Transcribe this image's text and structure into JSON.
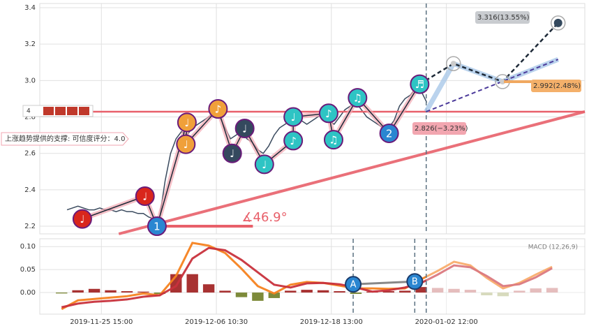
{
  "chart_data": [
    {
      "type": "line",
      "x": [
        5,
        6,
        7,
        8,
        9,
        10,
        11,
        12,
        13,
        14,
        15,
        16,
        17,
        18,
        19,
        20,
        21,
        22,
        23,
        24,
        25,
        26,
        27,
        28,
        29,
        30,
        31,
        32,
        33,
        34,
        35,
        36,
        37,
        38,
        39,
        40,
        41,
        42,
        43,
        44,
        45,
        46,
        47,
        48,
        49,
        50,
        51,
        52,
        53,
        54,
        55,
        56,
        57,
        58,
        59,
        60,
        61,
        62,
        63,
        64,
        65,
        66,
        67,
        68,
        69,
        70,
        71
      ],
      "values": [
        2.29,
        2.3,
        2.31,
        2.3,
        2.29,
        2.29,
        2.3,
        2.29,
        2.29,
        2.28,
        2.29,
        2.28,
        2.28,
        2.27,
        2.27,
        2.25,
        2.24,
        2.25,
        2.45,
        2.6,
        2.68,
        2.72,
        2.7,
        2.74,
        2.76,
        2.78,
        2.8,
        2.82,
        2.8,
        2.74,
        2.68,
        2.7,
        2.72,
        2.68,
        2.66,
        2.62,
        2.6,
        2.64,
        2.7,
        2.74,
        2.76,
        2.78,
        2.76,
        2.78,
        2.76,
        2.78,
        2.8,
        2.82,
        2.78,
        2.76,
        2.8,
        2.84,
        2.86,
        2.88,
        2.84,
        2.8,
        2.78,
        2.76,
        2.74,
        2.74,
        2.78,
        2.86,
        2.9,
        2.92,
        2.96,
        2.94,
        2.88
      ],
      "color": "#3a4a5e",
      "xlim": [
        0,
        100
      ],
      "ylim": [
        2.158,
        3.423
      ],
      "yticks": [
        2.2,
        2.4,
        2.6,
        2.8,
        {
          "value": 3,
          "label": "3.0"
        },
        3.2,
        3.4
      ],
      "xticks": [
        {
          "value": 11.3,
          "label": "2019-11-25 15:00"
        },
        {
          "value": 32.4,
          "label": "2019-12-06 10:30"
        },
        {
          "value": 53.5,
          "label": "2019-12-18 13:00"
        },
        {
          "value": 74.6,
          "label": "2020-01-02 12:00"
        }
      ],
      "grid": true,
      "level": 2.829,
      "support_line": {
        "x": [
          14.5,
          100
        ],
        "y": [
          2.158,
          2.829
        ]
      },
      "angle_line": {
        "x": [
          21.5,
          39.1
        ],
        "y": [
          2.2,
          2.2
        ]
      },
      "angle_label": "∡46.9°",
      "support_note": "上涨趋势提供的支撑: 可信度评分：4.0",
      "level_badge": "4",
      "vline": 70.9,
      "markers": [
        {
          "label": "♩",
          "x": 7.8,
          "y": 2.24,
          "color": "#d9261c"
        },
        {
          "label": "♩",
          "x": 19.3,
          "y": 2.365,
          "color": "#d9261c"
        },
        {
          "label": "1",
          "x": 21.5,
          "y": 2.2,
          "color": "#2a86d1"
        },
        {
          "label": "♩",
          "x": 27.0,
          "y": 2.77,
          "color": "#f0a03a"
        },
        {
          "label": "♩",
          "x": 26.8,
          "y": 2.65,
          "color": "#f0a03a"
        },
        {
          "label": "♪",
          "x": 32.7,
          "y": 2.844,
          "color": "#f0a03a"
        },
        {
          "label": "♩",
          "x": 35.3,
          "y": 2.6,
          "color": "#34495e"
        },
        {
          "label": "♩",
          "x": 37.6,
          "y": 2.737,
          "color": "#34495e"
        },
        {
          "label": "♩",
          "x": 41.2,
          "y": 2.54,
          "color": "#2ec4c4"
        },
        {
          "label": "♪",
          "x": 46.5,
          "y": 2.67,
          "color": "#2ec4c4"
        },
        {
          "label": "♩",
          "x": 46.5,
          "y": 2.8,
          "color": "#2ec4c4"
        },
        {
          "label": "♪",
          "x": 53.0,
          "y": 2.82,
          "color": "#2ec4c4"
        },
        {
          "label": "♫",
          "x": 53.9,
          "y": 2.675,
          "color": "#2ec4c4"
        },
        {
          "label": "♫",
          "x": 58.3,
          "y": 2.905,
          "color": "#2ec4c4"
        },
        {
          "label": "2",
          "x": 64.1,
          "y": 2.71,
          "color": "#2a86d1"
        },
        {
          "label": "♬",
          "x": 69.7,
          "y": 2.98,
          "color": "#2ec4c4"
        }
      ],
      "forecast_path": {
        "x": [
          69.7,
          75.9,
          84.9,
          95.1
        ],
        "y": [
          2.98,
          3.093,
          2.994,
          3.316
        ]
      },
      "forecast_band": {
        "x": [
          70.9,
          75.9,
          84.9,
          95.1
        ],
        "y": [
          2.83,
          3.093,
          2.994,
          3.116
        ]
      },
      "forecast_trend": {
        "x": [
          70.9,
          95.1
        ],
        "y": [
          2.829,
          3.116
        ]
      },
      "price_labels": [
        "3.316(13.55%)",
        "2.992(2.48%)",
        "2.826(−3.23%)"
      ]
    },
    {
      "type": "line",
      "title": "MACD (12,26,9)",
      "x": [
        4,
        7,
        10,
        13,
        16,
        19,
        22,
        25,
        28,
        31,
        34,
        37,
        40,
        43,
        46,
        49,
        52,
        55,
        58,
        61,
        64,
        67,
        70,
        73,
        76,
        79,
        82,
        85,
        88,
        91,
        94
      ],
      "series": [
        {
          "color": "#f5821f",
          "values": [
            -0.036,
            -0.017,
            -0.014,
            -0.011,
            -0.008,
            -0.002,
            -0.006,
            0.036,
            0.108,
            0.102,
            0.086,
            0.052,
            0.014,
            -0.002,
            0.017,
            0.023,
            0.021,
            0.015,
            0.009,
            0.009,
            0.008,
            0.009,
            0.029,
            0.047,
            0.067,
            0.059,
            0.032,
            0.009,
            0.021,
            0.039,
            0.056
          ]
        },
        {
          "color": "#c8323c",
          "values": [
            -0.032,
            -0.024,
            -0.02,
            -0.018,
            -0.015,
            -0.009,
            -0.006,
            0.014,
            0.074,
            0.097,
            0.092,
            0.071,
            0.044,
            0.017,
            0.011,
            0.02,
            0.021,
            0.018,
            0.011,
            0.002,
            0.005,
            0.011,
            0.021,
            0.039,
            0.059,
            0.055,
            0.036,
            0.014,
            0.018,
            0.033,
            0.053
          ]
        }
      ],
      "histogram": [
        -0.002,
        0.005,
        0.008,
        0.005,
        0.003,
        0.002,
        -0.003,
        0.04,
        0.04,
        0.018,
        0.004,
        -0.01,
        -0.018,
        -0.012,
        0.004,
        0.006,
        0.005,
        0.003,
        -0.003,
        0.002,
        0.003,
        0.004,
        0.012,
        0.01,
        0.008,
        0.006,
        -0.006,
        -0.008,
        0.004,
        0.009,
        0.01
      ],
      "forecast_from": 70.9,
      "xlim": [
        0,
        100
      ],
      "ylim": [
        -0.047,
        0.117
      ],
      "yticks": [
        {
          "value": 0,
          "label": "0.00"
        },
        {
          "value": 0.05,
          "label": "0.05"
        },
        {
          "value": 0.1,
          "label": "0.10"
        }
      ],
      "grid": true,
      "vlines": [
        57.5,
        68.8,
        70.9
      ],
      "markers": [
        {
          "label": "A",
          "x": 57.5,
          "y": 0.018
        },
        {
          "label": "B",
          "x": 68.8,
          "y": 0.024
        }
      ]
    }
  ]
}
